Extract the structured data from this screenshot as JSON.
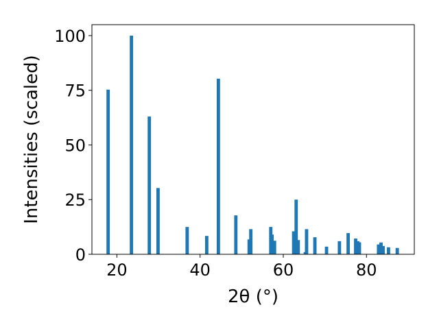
{
  "chart_data": {
    "type": "bar",
    "title": "",
    "xlabel": "2θ (°)",
    "ylabel": "Intensities (scaled)",
    "xlim": [
      14,
      91.5
    ],
    "ylim": [
      0,
      105
    ],
    "xticks": [
      20,
      40,
      60,
      80
    ],
    "yticks": [
      0,
      25,
      50,
      75,
      100
    ],
    "grid": false,
    "legend": "none",
    "bar_color": "#1f77b4",
    "bar_width": 0.8,
    "points": [
      {
        "x": 17.9,
        "y": 75.3
      },
      {
        "x": 23.5,
        "y": 100
      },
      {
        "x": 27.8,
        "y": 63.0
      },
      {
        "x": 29.9,
        "y": 30.3
      },
      {
        "x": 36.9,
        "y": 12.5
      },
      {
        "x": 41.6,
        "y": 8.4
      },
      {
        "x": 44.4,
        "y": 80.3
      },
      {
        "x": 48.6,
        "y": 17.8
      },
      {
        "x": 51.8,
        "y": 6.8
      },
      {
        "x": 52.2,
        "y": 11.5
      },
      {
        "x": 57.0,
        "y": 12.5
      },
      {
        "x": 57.3,
        "y": 9.0
      },
      {
        "x": 57.9,
        "y": 6.2
      },
      {
        "x": 62.5,
        "y": 10.5
      },
      {
        "x": 63.1,
        "y": 25.0
      },
      {
        "x": 63.6,
        "y": 6.5
      },
      {
        "x": 65.3,
        "y": 1.0
      },
      {
        "x": 65.6,
        "y": 11.5
      },
      {
        "x": 67.6,
        "y": 7.8
      },
      {
        "x": 70.4,
        "y": 3.5
      },
      {
        "x": 73.5,
        "y": 6.0
      },
      {
        "x": 75.6,
        "y": 9.7
      },
      {
        "x": 77.4,
        "y": 7.2
      },
      {
        "x": 77.9,
        "y": 6.0
      },
      {
        "x": 78.3,
        "y": 5.5
      },
      {
        "x": 82.9,
        "y": 4.5
      },
      {
        "x": 83.5,
        "y": 5.4
      },
      {
        "x": 84.0,
        "y": 3.8
      },
      {
        "x": 85.3,
        "y": 3.2
      },
      {
        "x": 87.4,
        "y": 2.9
      }
    ]
  }
}
